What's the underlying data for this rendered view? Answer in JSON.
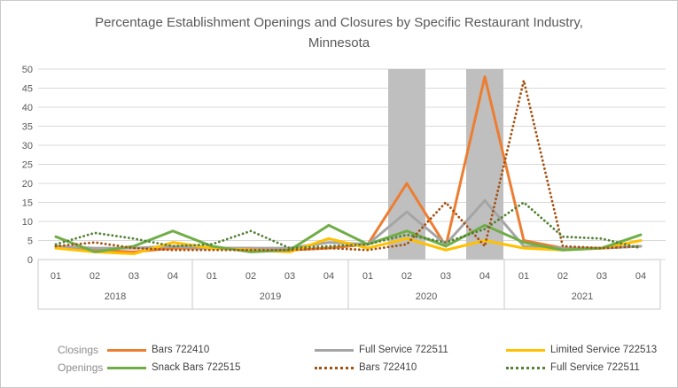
{
  "title": "Percentage Establishment Openings and Closures by Specific Restaurant Industry, Minnesota",
  "y_axis": {
    "ticks": [
      0,
      5,
      10,
      15,
      20,
      25,
      30,
      35,
      40,
      45,
      50
    ]
  },
  "x_axis": {
    "quarters": [
      "01",
      "02",
      "03",
      "04"
    ],
    "years": [
      "2018",
      "2019",
      "2020",
      "2021"
    ]
  },
  "highlight_bands": [
    {
      "year": "2020",
      "quarter": "02"
    },
    {
      "year": "2020",
      "quarter": "04"
    }
  ],
  "legend": {
    "rows": [
      {
        "label": "Closings"
      },
      {
        "label": "Openings"
      }
    ]
  },
  "colors": {
    "band": "#BFBFBF",
    "gridline": "#D9D9D9",
    "axis_text": "#595959",
    "table_line": "#C9C9C9",
    "legend_text": "#404040"
  },
  "chart_data": {
    "type": "line",
    "title": "Percentage Establishment Openings and Closures by Specific Restaurant Industry, Minnesota",
    "xlabel": "",
    "ylabel": "",
    "ylim": [
      0,
      50
    ],
    "grid": true,
    "legend_position": "bottom",
    "categories": [
      "2018-01",
      "2018-02",
      "2018-03",
      "2018-04",
      "2019-01",
      "2019-02",
      "2019-03",
      "2019-04",
      "2020-01",
      "2020-02",
      "2020-03",
      "2020-04",
      "2021-01",
      "2021-02",
      "2021-03",
      "2021-04"
    ],
    "series": [
      {
        "name": "Bars 722410",
        "group": "Closings",
        "style": "solid",
        "color": "#ED7D31",
        "values": [
          3.5,
          2.5,
          2,
          3,
          3,
          3,
          2.5,
          3,
          4,
          20,
          3.5,
          48,
          5,
          3,
          3,
          3.5
        ]
      },
      {
        "name": "Full Service 722511",
        "group": "Closings",
        "style": "solid",
        "color": "#A5A5A5",
        "values": [
          3.5,
          3,
          3,
          3.5,
          3,
          3,
          3,
          4.5,
          4,
          12.5,
          4,
          15.5,
          3.5,
          3,
          3,
          3.5
        ]
      },
      {
        "name": "Limited Service 722513",
        "group": "Closings",
        "style": "solid",
        "color": "#FFC000",
        "values": [
          3,
          2,
          1.5,
          4.5,
          3,
          2.5,
          2,
          5.5,
          3,
          5.5,
          2.5,
          5,
          3,
          2.5,
          3,
          5
        ]
      },
      {
        "name": "Snack Bars 722515",
        "group": "Openings",
        "style": "solid",
        "color": "#70AD47",
        "values": [
          6,
          2,
          3.5,
          7.5,
          3.5,
          2,
          2.5,
          9,
          4,
          7.5,
          3.5,
          9,
          4.5,
          2.5,
          3,
          6.5
        ]
      },
      {
        "name": "Bars 722410",
        "group": "Openings",
        "style": "dotted",
        "color": "#A5500F",
        "values": [
          3.5,
          4.5,
          3,
          2.5,
          2.5,
          2.5,
          2.5,
          3,
          2.5,
          4,
          15,
          3.5,
          47,
          3.5,
          3,
          3.5
        ]
      },
      {
        "name": "Full Service 722511",
        "group": "Openings",
        "style": "dotted",
        "color": "#538135",
        "values": [
          4,
          7,
          5.5,
          3.5,
          4,
          7.5,
          3,
          3.5,
          4,
          6.5,
          4.5,
          8,
          15,
          6,
          5.5,
          3
        ]
      }
    ]
  }
}
